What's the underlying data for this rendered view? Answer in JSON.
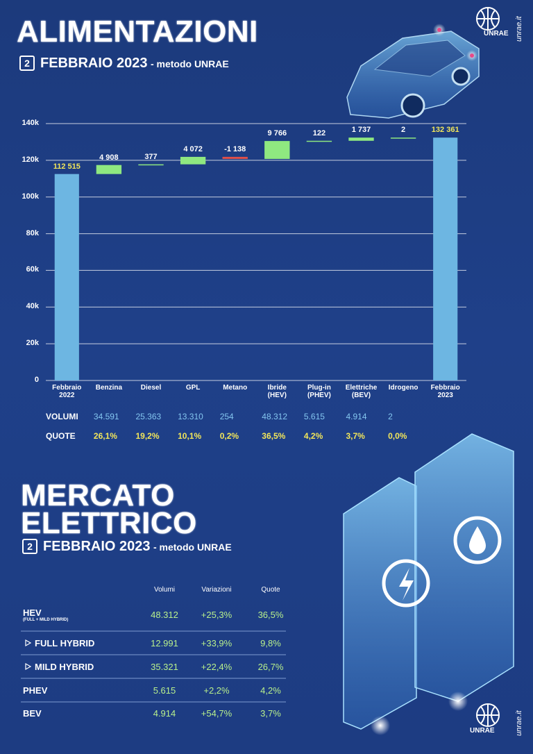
{
  "logo": {
    "text": "UNRAE",
    "site": "unrae.it"
  },
  "chart_data": {
    "type": "waterfall",
    "title": "ALIMENTAZIONI",
    "period_day": "2",
    "period": "FEBBRAIO 2023",
    "method": "- metodo UNRAE",
    "categories": [
      "Febbraio\n2022",
      "Benzina",
      "Diesel",
      "GPL",
      "Metano",
      "Ibride\n(HEV)",
      "Plug-in\n(PHEV)",
      "Elettriche\n(BEV)",
      "Idrogeno",
      "Febbraio\n2023"
    ],
    "values": [
      112515,
      4908,
      377,
      4072,
      -1138,
      9766,
      122,
      1737,
      2,
      132361
    ],
    "value_labels": [
      "112 515",
      "4 908",
      "377",
      "4 072",
      "-1 138",
      "9 766",
      "122",
      "1 737",
      "2",
      "132 361"
    ],
    "colors": {
      "total": "#6db6e2",
      "increase": "#8fe880",
      "decrease": "#e0504a",
      "total_label": "#f2e65a",
      "label": "#ffffff"
    },
    "ylim": [
      0,
      140000
    ],
    "yticks": [
      0,
      {
        "value": 20000,
        "label": "20k"
      },
      {
        "value": 40000,
        "label": "40k"
      },
      {
        "value": 60000,
        "label": "60k"
      },
      {
        "value": 80000,
        "label": "80k"
      },
      {
        "value": 100000,
        "label": "100k"
      },
      {
        "value": 120000,
        "label": "120k"
      },
      {
        "value": 140000,
        "label": "140k"
      }
    ],
    "grid": true
  },
  "summary": {
    "volumes": {
      "label": "VOLUMI",
      "values": [
        "34.591",
        "25.363",
        "13.310",
        "254",
        "48.312",
        "5.615",
        "4.914",
        "2"
      ]
    },
    "shares": {
      "label": "QUOTE",
      "values": [
        "26,1%",
        "19,2%",
        "10,1%",
        "0,2%",
        "36,5%",
        "4,2%",
        "3,7%",
        "0,0%"
      ]
    }
  },
  "market": {
    "title": "MERCATO\nELETTRICO",
    "period_day": "2",
    "period": "FEBBRAIO 2023",
    "method": "- metodo UNRAE",
    "columns": [
      "Volumi",
      "Variazioni",
      "Quote"
    ],
    "rows": [
      {
        "label": "HEV",
        "sublabel": "(FULL + MILD HYBRID)",
        "cells": [
          "48.312",
          "+25,3%",
          "36,5%"
        ]
      },
      {
        "label": "FULL HYBRID",
        "cells": [
          "12.991",
          "+33,9%",
          "9,8%"
        ]
      },
      {
        "label": "MILD HYBRID",
        "cells": [
          "35.321",
          "+22,4%",
          "26,7%"
        ]
      },
      {
        "label": "PHEV",
        "cells": [
          "5.615",
          "+2,2%",
          "4,2%"
        ]
      },
      {
        "label": "BEV",
        "cells": [
          "4.914",
          "+54,7%",
          "3,7%"
        ]
      }
    ]
  }
}
